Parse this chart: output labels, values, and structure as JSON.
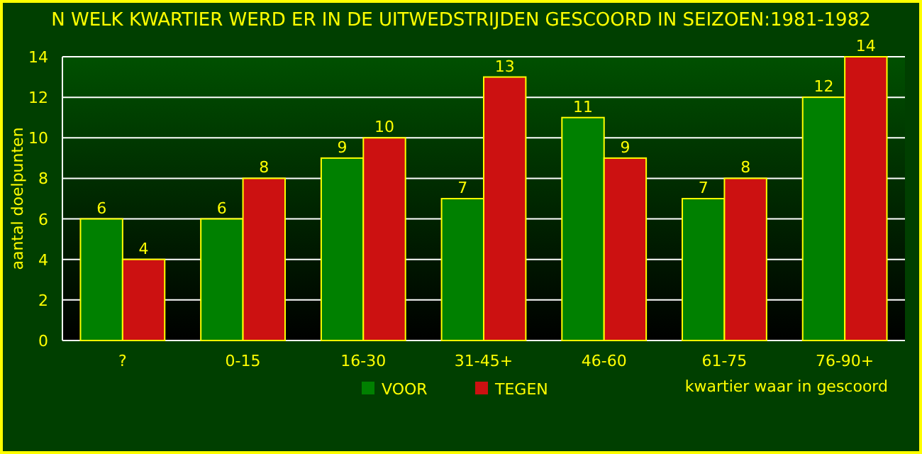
{
  "chart_data": {
    "type": "bar",
    "title": "N WELK KWARTIER WERD ER IN DE UITWEDSTRIJDEN GESCOORD IN SEIZOEN:1981-1982",
    "xlabel": "kwartier waar in gescoord",
    "ylabel": "aantal doelpunten",
    "categories": [
      "?",
      "0-15",
      "16-30",
      "31-45+",
      "46-60",
      "61-75",
      "76-90+"
    ],
    "series": [
      {
        "name": "VOOR",
        "color": "#008000",
        "values": [
          6,
          6,
          9,
          7,
          11,
          7,
          12
        ]
      },
      {
        "name": "TEGEN",
        "color": "#cc1111",
        "values": [
          4,
          8,
          10,
          13,
          9,
          8,
          14
        ]
      }
    ],
    "ylim": [
      0,
      14
    ],
    "yticks": [
      0,
      2,
      4,
      6,
      8,
      10,
      12,
      14
    ],
    "grid": "y",
    "legend": "bottom",
    "data_labels": true
  }
}
